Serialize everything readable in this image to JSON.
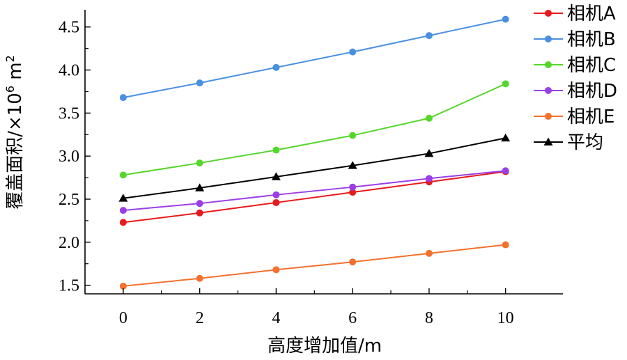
{
  "chart_data": {
    "type": "line",
    "title": "",
    "xlabel": "高度增加值/m",
    "ylabel_main": "覆盖面积/×10",
    "ylabel_sup": "6",
    "ylabel_unit": " m",
    "ylabel_unit_sup": "2",
    "x": [
      0,
      2,
      4,
      6,
      8,
      10
    ],
    "x_ticks": [
      "0",
      "2",
      "4",
      "6",
      "8",
      "10"
    ],
    "y_ticks": [
      "1.5",
      "2.0",
      "2.5",
      "3.0",
      "3.5",
      "4.0",
      "4.5"
    ],
    "xlim": [
      -1,
      11.5
    ],
    "ylim": [
      1.4,
      4.7
    ],
    "legend_position": "top-right",
    "series": [
      {
        "name": "相机A",
        "color": "#e8191b",
        "marker": "circle",
        "values": [
          2.23,
          2.34,
          2.46,
          2.58,
          2.7,
          2.82
        ]
      },
      {
        "name": "相机B",
        "color": "#4a90e2",
        "marker": "circle",
        "values": [
          3.68,
          3.85,
          4.03,
          4.21,
          4.4,
          4.59
        ]
      },
      {
        "name": "相机C",
        "color": "#55d62a",
        "marker": "circle",
        "values": [
          2.78,
          2.92,
          3.07,
          3.24,
          3.44,
          3.84
        ]
      },
      {
        "name": "相机D",
        "color": "#9a3fe8",
        "marker": "circle",
        "values": [
          2.37,
          2.45,
          2.55,
          2.64,
          2.74,
          2.83
        ]
      },
      {
        "name": "相机E",
        "color": "#f4702c",
        "marker": "circle",
        "values": [
          1.49,
          1.58,
          1.68,
          1.77,
          1.87,
          1.97
        ]
      },
      {
        "name": "平均",
        "color": "#000000",
        "marker": "triangle",
        "values": [
          2.51,
          2.63,
          2.76,
          2.89,
          3.03,
          3.21
        ]
      }
    ]
  }
}
